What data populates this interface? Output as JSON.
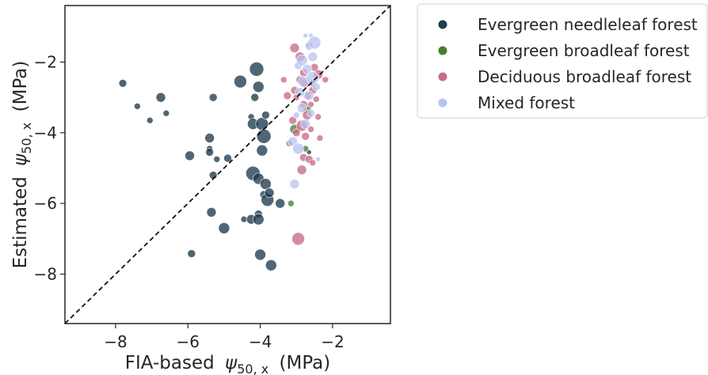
{
  "chart_data": {
    "type": "scatter",
    "title": "",
    "xlabel": "FIA-based",
    "ylabel": "Estimated",
    "xlabel_symbol": "ψ",
    "ylabel_symbol": "ψ",
    "label_subscript": "50, x",
    "label_unit": "(MPa)",
    "xlim": [
      -9.4,
      -0.4
    ],
    "ylim": [
      -9.4,
      -0.4
    ],
    "xticks": [
      -8,
      -6,
      -4,
      -2
    ],
    "yticks": [
      -8,
      -6,
      -4,
      -2
    ],
    "xtick_labels": [
      "−8",
      "−6",
      "−4",
      "−2"
    ],
    "ytick_labels": [
      "−8",
      "−6",
      "−4",
      "−2"
    ],
    "grid": false,
    "reference_line": "1:1 dashed",
    "legend_position": "outside-right",
    "series": [
      {
        "name": "Evergreen needleleaf forest",
        "color": "#1f3b4d",
        "points": [
          {
            "x": -7.8,
            "y": -2.6,
            "s": 5
          },
          {
            "x": -7.4,
            "y": -3.25,
            "s": 4
          },
          {
            "x": -7.05,
            "y": -3.65,
            "s": 4
          },
          {
            "x": -6.75,
            "y": -3.0,
            "s": 6
          },
          {
            "x": -6.6,
            "y": -3.45,
            "s": 4
          },
          {
            "x": -5.95,
            "y": -4.65,
            "s": 6
          },
          {
            "x": -5.9,
            "y": -7.42,
            "s": 5
          },
          {
            "x": -5.4,
            "y": -4.15,
            "s": 6
          },
          {
            "x": -5.4,
            "y": -4.45,
            "s": 4
          },
          {
            "x": -5.4,
            "y": -4.55,
            "s": 5
          },
          {
            "x": -5.35,
            "y": -6.25,
            "s": 6
          },
          {
            "x": -5.3,
            "y": -3.0,
            "s": 5
          },
          {
            "x": -5.3,
            "y": -5.2,
            "s": 5
          },
          {
            "x": -5.2,
            "y": -4.75,
            "s": 4
          },
          {
            "x": -5.0,
            "y": -6.7,
            "s": 7
          },
          {
            "x": -4.9,
            "y": -4.72,
            "s": 5
          },
          {
            "x": -4.55,
            "y": -2.55,
            "s": 8
          },
          {
            "x": -4.45,
            "y": -6.45,
            "s": 4
          },
          {
            "x": -4.25,
            "y": -6.45,
            "s": 6
          },
          {
            "x": -4.25,
            "y": -3.55,
            "s": 4
          },
          {
            "x": -4.2,
            "y": -3.75,
            "s": 7
          },
          {
            "x": -4.2,
            "y": -5.15,
            "s": 9
          },
          {
            "x": -4.15,
            "y": -3.0,
            "s": 5
          },
          {
            "x": -4.1,
            "y": -2.2,
            "s": 9
          },
          {
            "x": -4.05,
            "y": -2.7,
            "s": 7
          },
          {
            "x": -4.05,
            "y": -5.3,
            "s": 7
          },
          {
            "x": -4.05,
            "y": -6.3,
            "s": 5
          },
          {
            "x": -4.05,
            "y": -6.45,
            "s": 7
          },
          {
            "x": -4.0,
            "y": -7.45,
            "s": 7
          },
          {
            "x": -3.95,
            "y": -4.5,
            "s": 7
          },
          {
            "x": -3.95,
            "y": -3.75,
            "s": 8
          },
          {
            "x": -3.9,
            "y": -4.1,
            "s": 9
          },
          {
            "x": -3.9,
            "y": -5.75,
            "s": 5
          },
          {
            "x": -3.85,
            "y": -5.45,
            "s": 7
          },
          {
            "x": -3.85,
            "y": -3.5,
            "s": 5
          },
          {
            "x": -3.8,
            "y": -5.9,
            "s": 8
          },
          {
            "x": -3.75,
            "y": -5.7,
            "s": 6
          },
          {
            "x": -3.7,
            "y": -7.75,
            "s": 7
          },
          {
            "x": -3.45,
            "y": -6.0,
            "s": 6
          },
          {
            "x": -2.65,
            "y": -4.55,
            "s": 3
          }
        ]
      },
      {
        "name": "Evergreen broadleaf forest",
        "color": "#4a7c2f",
        "points": [
          {
            "x": -3.15,
            "y": -6.0,
            "s": 4
          },
          {
            "x": -3.05,
            "y": -3.9,
            "s": 6
          },
          {
            "x": -2.75,
            "y": -4.45,
            "s": 4
          },
          {
            "x": -2.7,
            "y": -3.35,
            "s": 5
          },
          {
            "x": -2.55,
            "y": -2.6,
            "s": 4
          }
        ]
      },
      {
        "name": "Deciduous broadleaf forest",
        "color": "#c96b86",
        "points": [
          {
            "x": -3.35,
            "y": -2.5,
            "s": 4
          },
          {
            "x": -3.25,
            "y": -2.95,
            "s": 5
          },
          {
            "x": -3.2,
            "y": -4.3,
            "s": 4
          },
          {
            "x": -3.1,
            "y": -3.65,
            "s": 5
          },
          {
            "x": -3.05,
            "y": -1.6,
            "s": 6
          },
          {
            "x": -3.05,
            "y": -2.8,
            "s": 5
          },
          {
            "x": -3.0,
            "y": -3.0,
            "s": 4
          },
          {
            "x": -3.0,
            "y": -4.0,
            "s": 5
          },
          {
            "x": -2.95,
            "y": -7.0,
            "s": 8
          },
          {
            "x": -2.9,
            "y": -1.85,
            "s": 6
          },
          {
            "x": -2.9,
            "y": -2.5,
            "s": 5
          },
          {
            "x": -2.85,
            "y": -3.8,
            "s": 7
          },
          {
            "x": -2.85,
            "y": -5.05,
            "s": 6
          },
          {
            "x": -2.8,
            "y": -2.3,
            "s": 5
          },
          {
            "x": -2.8,
            "y": -3.2,
            "s": 5
          },
          {
            "x": -2.8,
            "y": -4.7,
            "s": 5
          },
          {
            "x": -2.75,
            "y": -2.6,
            "s": 6
          },
          {
            "x": -2.75,
            "y": -4.1,
            "s": 5
          },
          {
            "x": -2.7,
            "y": -2.95,
            "s": 5
          },
          {
            "x": -2.7,
            "y": -3.5,
            "s": 6
          },
          {
            "x": -2.65,
            "y": -1.5,
            "s": 4
          },
          {
            "x": -2.65,
            "y": -4.75,
            "s": 5
          },
          {
            "x": -2.6,
            "y": -3.2,
            "s": 4
          },
          {
            "x": -2.6,
            "y": -3.9,
            "s": 4
          },
          {
            "x": -2.55,
            "y": -2.8,
            "s": 5
          },
          {
            "x": -2.55,
            "y": -4.85,
            "s": 4
          },
          {
            "x": -2.5,
            "y": -2.15,
            "s": 5
          },
          {
            "x": -2.45,
            "y": -3.05,
            "s": 4
          },
          {
            "x": -2.4,
            "y": -2.35,
            "s": 6
          },
          {
            "x": -2.4,
            "y": -3.55,
            "s": 4
          },
          {
            "x": -2.35,
            "y": -4.15,
            "s": 4
          },
          {
            "x": -2.2,
            "y": -2.5,
            "s": 4
          }
        ]
      },
      {
        "name": "Mixed forest",
        "color": "#b7c3ef",
        "points": [
          {
            "x": -3.1,
            "y": -4.25,
            "s": 6
          },
          {
            "x": -3.05,
            "y": -5.45,
            "s": 6
          },
          {
            "x": -3.0,
            "y": -3.5,
            "s": 4
          },
          {
            "x": -2.95,
            "y": -2.1,
            "s": 5
          },
          {
            "x": -2.95,
            "y": -4.45,
            "s": 7
          },
          {
            "x": -2.9,
            "y": -2.85,
            "s": 6
          },
          {
            "x": -2.85,
            "y": -1.95,
            "s": 7
          },
          {
            "x": -2.85,
            "y": -3.3,
            "s": 6
          },
          {
            "x": -2.8,
            "y": -2.55,
            "s": 7
          },
          {
            "x": -2.75,
            "y": -1.25,
            "s": 3
          },
          {
            "x": -2.75,
            "y": -3.75,
            "s": 6
          },
          {
            "x": -2.7,
            "y": -2.2,
            "s": 6
          },
          {
            "x": -2.65,
            "y": -1.55,
            "s": 5
          },
          {
            "x": -2.65,
            "y": -2.95,
            "s": 6
          },
          {
            "x": -2.6,
            "y": -1.25,
            "s": 3
          },
          {
            "x": -2.6,
            "y": -3.45,
            "s": 5
          },
          {
            "x": -2.55,
            "y": -2.45,
            "s": 8
          },
          {
            "x": -2.55,
            "y": -1.85,
            "s": 6
          },
          {
            "x": -2.5,
            "y": -1.45,
            "s": 8
          },
          {
            "x": -2.45,
            "y": -2.7,
            "s": 5
          },
          {
            "x": -2.4,
            "y": -4.75,
            "s": 3
          }
        ]
      }
    ]
  }
}
